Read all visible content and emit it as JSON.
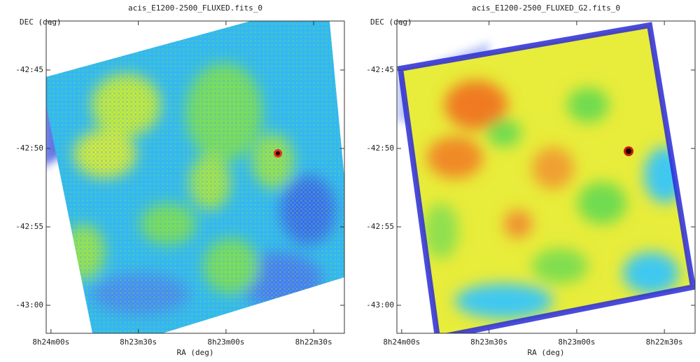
{
  "panels": [
    {
      "title": "acis_E1200-2500_FLUXED.fits_0",
      "y_label": "DEC (deg)",
      "x_label": "RA (deg)",
      "x_ticks": [
        "8h24m00s",
        "8h23m30s",
        "8h23m00s",
        "8h22m30s"
      ],
      "y_ticks": [
        "-42:45",
        "-42:50",
        "-42:55",
        "-43:00"
      ]
    },
    {
      "title": "acis_E1200-2500_FLUXED_G2.fits_0",
      "y_label": "DEC (deg)",
      "x_label": "RA (deg)",
      "x_ticks": [
        "8h24m00s",
        "8h23m30s",
        "8h23m00s",
        "8h22m30s"
      ],
      "y_ticks": [
        "-42:45",
        "-42:50",
        "-42:55",
        "-43:00"
      ]
    }
  ]
}
